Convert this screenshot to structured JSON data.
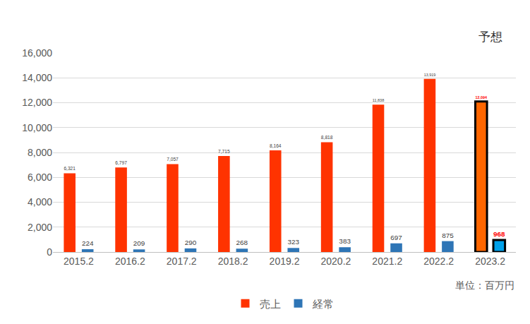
{
  "chart_data": {
    "type": "bar",
    "categories": [
      "2015.2",
      "2016.2",
      "2017.2",
      "2018.2",
      "2019.2",
      "2020.2",
      "2021.2",
      "2022.2",
      "2023.2"
    ],
    "series": [
      {
        "name": "売上",
        "color": "#FF3300",
        "colors": [
          "#FF3300",
          "#FF3300",
          "#FF3300",
          "#FF3300",
          "#FF3300",
          "#FF3300",
          "#FF3300",
          "#FF3300",
          "#FF6600"
        ],
        "values": [
          6321,
          6797,
          7057,
          7715,
          8164,
          8818,
          11838,
          13919,
          12094
        ],
        "value_labels": [
          "6,321",
          "6,797",
          "7,057",
          "7,715",
          "8,164",
          "8,818",
          "11,838",
          "13,919",
          "12,094"
        ]
      },
      {
        "name": "経常",
        "color": "#2E75B6",
        "colors": [
          "#2E75B6",
          "#2E75B6",
          "#2E75B6",
          "#2E75B6",
          "#2E75B6",
          "#2E75B6",
          "#2E75B6",
          "#2E75B6",
          "#00A0E9"
        ],
        "values": [
          224,
          209,
          290,
          268,
          323,
          383,
          697,
          875,
          968
        ],
        "value_labels": [
          "224",
          "209",
          "290",
          "268",
          "323",
          "383",
          "697",
          "875",
          "968"
        ]
      }
    ],
    "annotations": [
      "予想",
      "単位：百万円"
    ],
    "ylim": [
      0,
      16000
    ],
    "yticks": [
      0,
      {
        "value": 2000,
        "label": "2,000"
      },
      {
        "value": 4000,
        "label": "4,000"
      },
      {
        "value": 6000,
        "label": "6,000"
      },
      {
        "value": 8000,
        "label": "8,000"
      },
      {
        "value": 10000,
        "label": "10,000"
      },
      {
        "value": 12000,
        "label": "12,000"
      },
      {
        "value": 14000,
        "label": "14,000"
      },
      {
        "value": 16000,
        "label": "16,000"
      }
    ],
    "grid": true,
    "legend": "bottom",
    "data_labels": true
  }
}
